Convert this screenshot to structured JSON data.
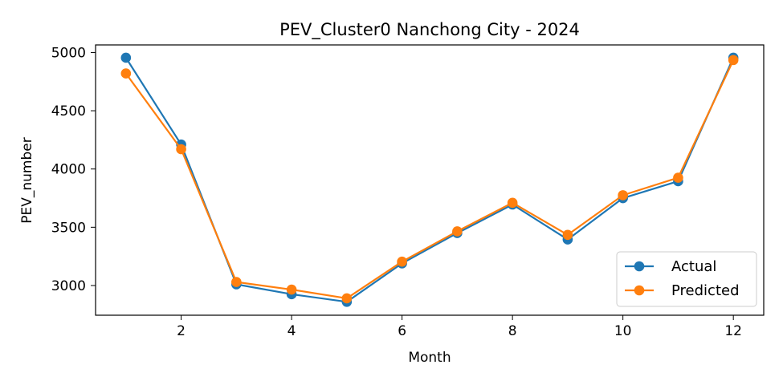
{
  "chart_data": {
    "type": "line",
    "title": "PEV_Cluster0 Nanchong City - 2024",
    "xlabel": "Month",
    "ylabel": "PEV_number",
    "x": [
      1,
      2,
      3,
      4,
      5,
      6,
      7,
      8,
      9,
      10,
      11,
      12
    ],
    "xlim": [
      0.45,
      12.55
    ],
    "ylim": [
      2745,
      5065
    ],
    "xticks": [
      2,
      4,
      6,
      8,
      10,
      12
    ],
    "yticks": [
      3000,
      3500,
      4000,
      4500,
      5000
    ],
    "grid": false,
    "legend_position": "lower-right",
    "series": [
      {
        "name": "Actual",
        "color": "#1f77b4",
        "marker": "circle",
        "values": [
          4955,
          4210,
          3010,
          2925,
          2860,
          3190,
          3450,
          3695,
          3395,
          3750,
          3895,
          4955
        ]
      },
      {
        "name": "Predicted",
        "color": "#ff7f0e",
        "marker": "circle",
        "values": [
          4820,
          4170,
          3030,
          2965,
          2890,
          3205,
          3465,
          3710,
          3435,
          3775,
          3925,
          4935
        ]
      }
    ]
  }
}
